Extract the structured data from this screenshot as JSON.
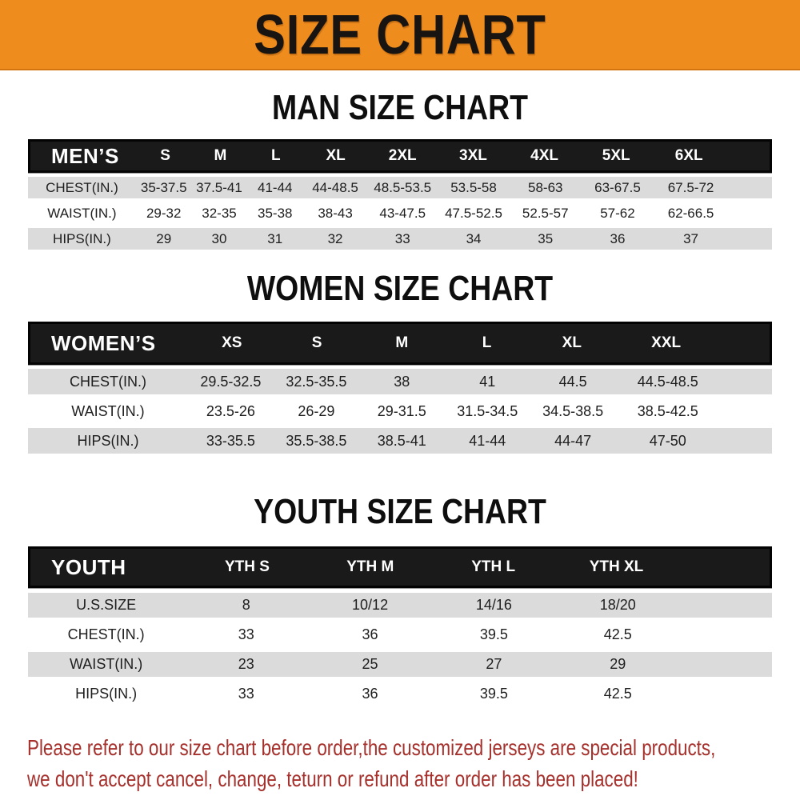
{
  "banner": {
    "title": "SIZE CHART",
    "bg_color": "#EF8C1E",
    "text_color": "#181411"
  },
  "colors": {
    "header_bg": "#1A1A1A",
    "row_gray": "#DBDBDB",
    "row_white": "#FFFFFF",
    "footer_red": "#A6302C"
  },
  "sections": [
    {
      "id": "men",
      "title": "MAN SIZE CHART",
      "header_label": "MEN’S",
      "columns": [
        "S",
        "M",
        "L",
        "XL",
        "2XL",
        "3XL",
        "4XL",
        "5XL",
        "6XL"
      ],
      "rows": [
        {
          "label": "CHEST(IN.)",
          "values": [
            "35-37.5",
            "37.5-41",
            "41-44",
            "44-48.5",
            "48.5-53.5",
            "53.5-58",
            "58-63",
            "63-67.5",
            "67.5-72"
          ]
        },
        {
          "label": "WAIST(IN.)",
          "values": [
            "29-32",
            "32-35",
            "35-38",
            "38-43",
            "43-47.5",
            "47.5-52.5",
            "52.5-57",
            "57-62",
            "62-66.5"
          ]
        },
        {
          "label": "HIPS(IN.)",
          "values": [
            "29",
            "30",
            "31",
            "32",
            "33",
            "34",
            "35",
            "36",
            "37"
          ]
        }
      ]
    },
    {
      "id": "women",
      "title": "WOMEN SIZE CHART",
      "header_label": "WOMEN’S",
      "columns": [
        "XS",
        "S",
        "M",
        "L",
        "XL",
        "XXL"
      ],
      "rows": [
        {
          "label": "CHEST(IN.)",
          "values": [
            "29.5-32.5",
            "32.5-35.5",
            "38",
            "41",
            "44.5",
            "44.5-48.5"
          ]
        },
        {
          "label": "WAIST(IN.)",
          "values": [
            "23.5-26",
            "26-29",
            "29-31.5",
            "31.5-34.5",
            "34.5-38.5",
            "38.5-42.5"
          ]
        },
        {
          "label": "HIPS(IN.)",
          "values": [
            "33-35.5",
            "35.5-38.5",
            "38.5-41",
            "41-44",
            "44-47",
            "47-50"
          ]
        }
      ]
    },
    {
      "id": "youth",
      "title": "YOUTH SIZE CHART",
      "header_label": "YOUTH",
      "columns": [
        "YTH S",
        "YTH M",
        "YTH L",
        "YTH XL"
      ],
      "rows": [
        {
          "label": "U.S.SIZE",
          "values": [
            "8",
            "10/12",
            "14/16",
            "18/20"
          ]
        },
        {
          "label": "CHEST(IN.)",
          "values": [
            "33",
            "36",
            "39.5",
            "42.5"
          ]
        },
        {
          "label": "WAIST(IN.)",
          "values": [
            "23",
            "25",
            "27",
            "29"
          ]
        },
        {
          "label": "HIPS(IN.)",
          "values": [
            "33",
            "36",
            "39.5",
            "42.5"
          ]
        }
      ]
    }
  ],
  "footer": {
    "line1": "Please refer to our size chart before order,the customized jerseys are special products,",
    "line2": "we don't accept cancel, change, teturn or refund after order has been placed!"
  }
}
